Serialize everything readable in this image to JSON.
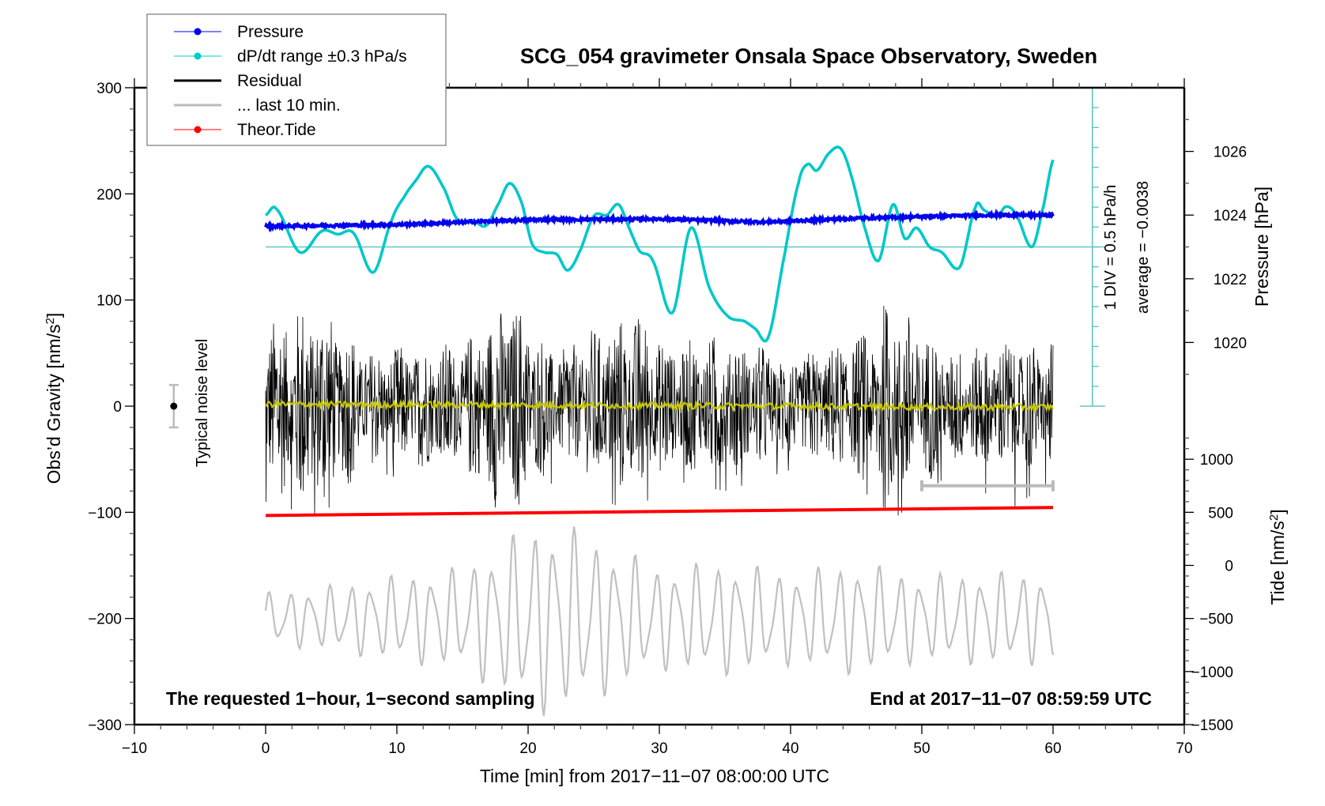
{
  "chart_data": {
    "type": "line",
    "title": "SCG_054 gravimeter Onsala Space Observatory, Sweden",
    "xlabel": "Time [min] from 2017−11−07 08:00:00 UTC",
    "ylabel": "Obs’d Gravity [nm/s²]",
    "ylabel_parts": {
      "main": "Obs’d Gravity [nm/s",
      "sup": "2",
      "end": "]"
    },
    "y2label_pressure": "Pressure [hPa]",
    "y2label_tide": {
      "main": "Tide [nm/s",
      "sup": "2",
      "end": "]"
    },
    "xlim": [
      -10,
      70
    ],
    "ylim": [
      -300,
      300
    ],
    "xticks": [
      -10,
      0,
      10,
      20,
      30,
      40,
      50,
      60,
      70
    ],
    "xtick_labels": [
      "−10",
      "0",
      "10",
      "20",
      "30",
      "40",
      "50",
      "60",
      "70"
    ],
    "yticks": [
      -300,
      -200,
      -100,
      0,
      100,
      200,
      300
    ],
    "ytick_labels": [
      "−300",
      "−200",
      "−100",
      "0",
      "100",
      "200",
      "300"
    ],
    "pressure_axis": {
      "ticks": [
        1020,
        1022,
        1024,
        1026
      ],
      "tick_labels": [
        "1020",
        "1022",
        "1024",
        "1026"
      ],
      "gravity_at_1020": 60,
      "gravity_per_hpa": 30
    },
    "tide_axis": {
      "ticks": [
        -1500,
        -1000,
        -500,
        0,
        500,
        1000
      ],
      "tick_labels": [
        "−1500",
        "−1000",
        "−500",
        "0",
        "500",
        "1000"
      ],
      "gravity_at_minus1500": -300,
      "gravity_per_unit": 0.1
    },
    "legend": {
      "position": "top-left",
      "entries": [
        {
          "label": "Pressure",
          "color": "#0000ee",
          "marker": true,
          "key": "pressure"
        },
        {
          "label": "dP/dt range ±0.3 hPa/s",
          "color": "#00cccc",
          "marker": true,
          "key": "dpdt"
        },
        {
          "label": "Residual",
          "color": "#000000",
          "marker": false,
          "key": "residual"
        },
        {
          "label": "... last 10 min.",
          "color": "#bbbbbb",
          "marker": false,
          "key": "last10"
        },
        {
          "label": "Theor.Tide",
          "color": "#ff0000",
          "marker": true,
          "key": "tide"
        }
      ]
    },
    "annotations": {
      "bottom_left": "The requested 1−hour, 1−second sampling",
      "bottom_right": "End at 2017−11−07 08:59:59 UTC",
      "noise_label": "Typical noise level",
      "div_label": "1 DIV = 0.5 hPa/h",
      "average_label": "average = −0.0038"
    },
    "noise_level": {
      "x": -7,
      "center": 0,
      "half_range": 20
    },
    "last10_bar": {
      "x_start": 50,
      "x_end": 60,
      "y": -75
    },
    "dpdt_scale": {
      "x": 63,
      "y_top": 300,
      "y_bottom": 0,
      "zero_line_y": 150,
      "div_step": 18.75
    },
    "series": [
      {
        "name": "Pressure",
        "unit": "hPa",
        "color": "#0000ee",
        "x": [
          0,
          10,
          20,
          30,
          38,
          45,
          50,
          55,
          60
        ],
        "values": [
          1023.65,
          1023.7,
          1023.85,
          1023.88,
          1023.78,
          1023.9,
          1023.95,
          1024.0,
          1024.0
        ]
      },
      {
        "name": "dP/dt",
        "unit": "gravity-axis equivalent",
        "color": "#00cccc",
        "x": [
          0,
          0.8,
          2.6,
          4.3,
          5.5,
          6.7,
          8.2,
          9.6,
          10.6,
          11.4,
          12.4,
          13.6,
          14.6,
          15.8,
          16.8,
          17.8,
          18.6,
          19.5,
          20.3,
          21.2,
          22.2,
          23.0,
          23.9,
          25.0,
          26.0,
          26.9,
          27.8,
          28.5,
          29.5,
          31.0,
          32.4,
          33.8,
          35.2,
          36.5,
          37.3,
          38.3,
          39.5,
          40.6,
          41.3,
          42.0,
          42.9,
          43.8,
          44.6,
          45.6,
          46.7,
          47.8,
          48.7,
          49.6,
          50.6,
          51.5,
          52.9,
          54.1,
          54.7,
          55.7,
          56.4,
          57.2,
          58.4,
          59.3,
          60.0
        ],
        "values": [
          180,
          186,
          145,
          165,
          162,
          163,
          126,
          175,
          198,
          212,
          226,
          205,
          176,
          175,
          170,
          192,
          210,
          192,
          153,
          145,
          143,
          128,
          145,
          179,
          180,
          190,
          165,
          146,
          137,
          88,
          168,
          112,
          85,
          80,
          73,
          65,
          140,
          210,
          228,
          222,
          238,
          243,
          218,
          170,
          137,
          190,
          158,
          168,
          150,
          145,
          131,
          188,
          185,
          178,
          188,
          180,
          150,
          190,
          232
        ]
      },
      {
        "name": "Residual",
        "unit": "nm/s²",
        "color": "#000000",
        "description": "high-frequency microseism noise about ~0",
        "x": [
          0,
          4,
          8,
          12,
          15,
          18.5,
          22,
          28,
          31,
          35,
          40,
          45,
          47.5,
          52,
          57,
          60
        ],
        "envelope": [
          85,
          105,
          55,
          60,
          62,
          110,
          55,
          95,
          60,
          70,
          50,
          65,
          105,
          55,
          65,
          60
        ],
        "min_spikes": [
          -90,
          -105,
          -60,
          -75,
          -100,
          -115,
          -70,
          -100,
          -70,
          -80,
          -60,
          -70,
          -110,
          -65,
          -95,
          -70
        ]
      },
      {
        "name": "Residual smoothed",
        "unit": "nm/s²",
        "color": "#c8c800",
        "x": [
          0,
          20,
          40,
          60
        ],
        "values": [
          2,
          1,
          0,
          -1
        ]
      },
      {
        "name": "Theor.Tide",
        "unit": "nm/s² (tide axis)",
        "color": "#ff0000",
        "x": [
          0,
          60
        ],
        "values": [
          470,
          545
        ]
      },
      {
        "name": "... last 10 min.",
        "unit": "tide axis",
        "color": "#bbbbbb",
        "description": "residual of last 10 min, stretched over the 60 min window",
        "x": [
          0,
          5,
          10,
          15,
          20,
          22,
          25,
          30,
          35,
          40,
          45,
          50,
          55,
          60
        ],
        "amplitude": [
          250,
          320,
          420,
          500,
          900,
          950,
          800,
          500,
          550,
          450,
          550,
          420,
          450,
          450
        ],
        "center": -500
      }
    ]
  }
}
